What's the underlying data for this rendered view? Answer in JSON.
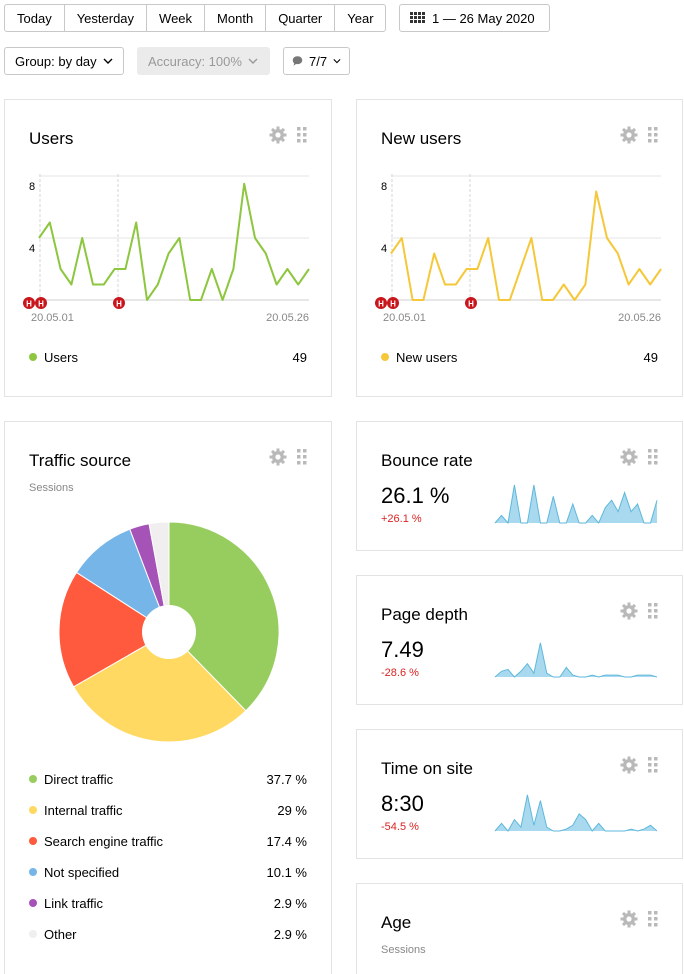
{
  "toolbar": {
    "periods": [
      "Today",
      "Yesterday",
      "Week",
      "Month",
      "Quarter",
      "Year"
    ],
    "date_range": "1 — 26 May 2020",
    "group": "Group: by day",
    "accuracy": "Accuracy: 100%",
    "annotations": "7/7"
  },
  "users_card": {
    "title": "Users",
    "legend": "Users",
    "total": "49",
    "color": "#8dc63f",
    "y_ticks": [
      "8",
      "4"
    ],
    "start_date": "20.05.01",
    "end_date": "20.05.26",
    "holiday_marker": "H"
  },
  "new_users_card": {
    "title": "New users",
    "legend": "New users",
    "total": "49",
    "color": "#f5c83a",
    "y_ticks": [
      "8",
      "4"
    ],
    "start_date": "20.05.01",
    "end_date": "20.05.26",
    "holiday_marker": "H"
  },
  "traffic_card": {
    "title": "Traffic source",
    "subtitle": "Sessions",
    "items": [
      {
        "label": "Direct traffic",
        "value": "37.7 %",
        "color": "#97cd5e"
      },
      {
        "label": "Internal traffic",
        "value": "29 %",
        "color": "#ffd962"
      },
      {
        "label": "Search engine traffic",
        "value": "17.4 %",
        "color": "#ff5a3d"
      },
      {
        "label": "Not specified",
        "value": "10.1 %",
        "color": "#76b5e8"
      },
      {
        "label": "Link traffic",
        "value": "2.9 %",
        "color": "#a653b8"
      },
      {
        "label": "Other",
        "value": "2.9 %",
        "color": "#f0eeee"
      }
    ]
  },
  "bounce_card": {
    "title": "Bounce rate",
    "value": "26.1 %",
    "delta": "+26.1 %"
  },
  "depth_card": {
    "title": "Page depth",
    "value": "7.49",
    "delta": "-28.6 %"
  },
  "time_card": {
    "title": "Time on site",
    "value": "8:30",
    "delta": "-54.5 %"
  },
  "age_card": {
    "title": "Age",
    "subtitle": "Sessions"
  },
  "chart_data": [
    {
      "type": "line",
      "title": "Users",
      "series": [
        {
          "name": "Users",
          "values": [
            4,
            5,
            2,
            1,
            4,
            1,
            1,
            2,
            2,
            5,
            0,
            1,
            3,
            4,
            0,
            0,
            2,
            0,
            2,
            7.5,
            4,
            3,
            1,
            2,
            1,
            2
          ]
        }
      ],
      "ylim": [
        0,
        8
      ]
    },
    {
      "type": "line",
      "title": "New users",
      "series": [
        {
          "name": "New users",
          "values": [
            3,
            4,
            0,
            0,
            3,
            1,
            1,
            2,
            2,
            4,
            0,
            0,
            2,
            4,
            0,
            0,
            1,
            0,
            1,
            7,
            4,
            3,
            1,
            2,
            1,
            2
          ]
        }
      ],
      "ylim": [
        0,
        8
      ]
    },
    {
      "type": "pie",
      "title": "Traffic source",
      "categories": [
        "Direct traffic",
        "Internal traffic",
        "Search engine traffic",
        "Not specified",
        "Link traffic",
        "Other"
      ],
      "values": [
        37.7,
        29,
        17.4,
        10.1,
        2.9,
        2.9
      ]
    },
    {
      "type": "area",
      "title": "Bounce rate",
      "values": [
        0,
        0.2,
        0,
        1,
        0,
        0,
        1,
        0,
        0,
        0.7,
        0,
        0,
        0.5,
        0,
        0,
        0.2,
        0,
        0.4,
        0.6,
        0.3,
        0.8,
        0.3,
        0.5,
        0,
        0,
        0.6
      ]
    },
    {
      "type": "area",
      "title": "Page depth",
      "values": [
        0,
        0.15,
        0.2,
        0,
        0.15,
        0.35,
        0.1,
        0.9,
        0.1,
        0,
        0,
        0.25,
        0.05,
        0,
        0,
        0.05,
        0,
        0.05,
        0.05,
        0.05,
        0,
        0,
        0.05,
        0.05,
        0.05,
        0
      ]
    },
    {
      "type": "area",
      "title": "Time on site",
      "values": [
        0,
        0.2,
        0,
        0.3,
        0.1,
        0.95,
        0.15,
        0.8,
        0.1,
        0,
        0,
        0.05,
        0.15,
        0.45,
        0.3,
        0,
        0.2,
        0,
        0,
        0,
        0,
        0.05,
        0,
        0.05,
        0.15,
        0
      ]
    }
  ]
}
